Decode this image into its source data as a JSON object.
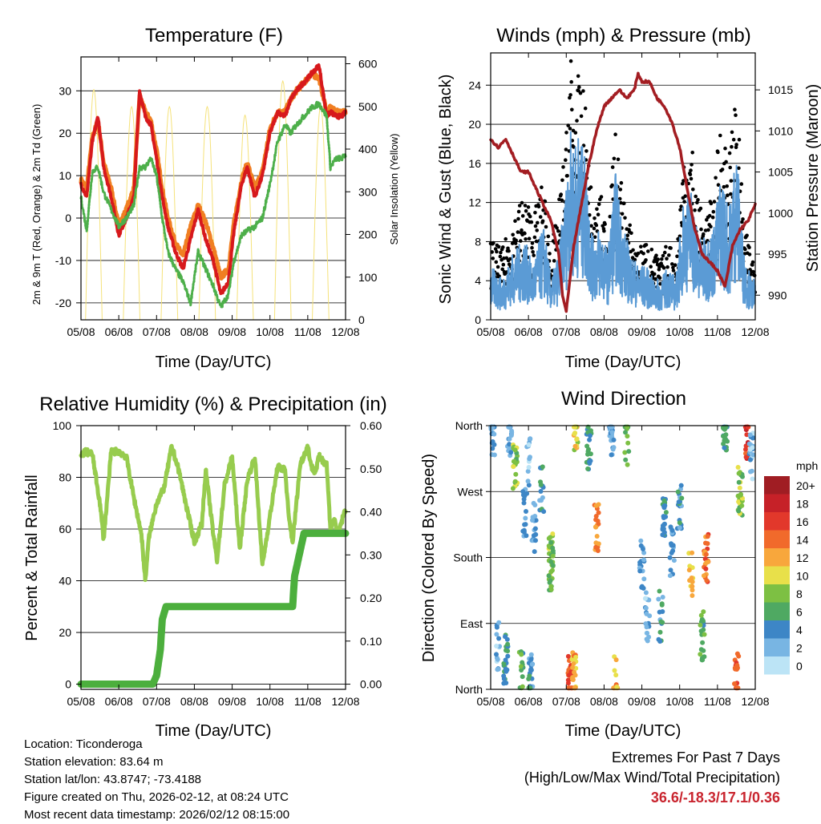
{
  "info": {
    "location": "Location: Ticonderoga",
    "elevation": "Station elevation: 83.64 m",
    "latlon": "Station lat/lon: 43.8747; -73.4188",
    "created": "Figure created on Thu, 2026-02-12, at 08:24 UTC",
    "recent": "Most recent data timestamp: 2026/02/12 08:15:00"
  },
  "extremes": {
    "title": "Extremes For Past 7 Days",
    "subtitle": "(High/Low/Max Wind/Total Precipitation)",
    "values": "36.6/-18.3/17.1/0.36"
  },
  "colors": {
    "temp2m": "#d7191c",
    "temp9m": "#f07f22",
    "dewpoint": "#4daf4a",
    "solar": "#f5e27a",
    "gust": "#000000",
    "wind": "#5b9bd5",
    "pressure": "#a31d22",
    "rh": "#97cc4e",
    "precip": "#4caf3d"
  },
  "chart_data": [
    {
      "id": "temp",
      "type": "line",
      "title": "Temperature (F)",
      "xlabel": "Time (Day/UTC)",
      "ylabel": "2m & 9m T (Red, Orange) & 2m Td (Green)",
      "ylabel_right": "Solar Insolation (Yellow)",
      "xlim": [
        0,
        7
      ],
      "ylim": [
        -24,
        38
      ],
      "ylim_right": [
        0,
        616
      ],
      "x_ticks": [
        "05/08",
        "06/08",
        "07/08",
        "08/08",
        "09/08",
        "10/08",
        "11/08",
        "12/08"
      ],
      "y_ticks": [
        -20,
        -10,
        0,
        10,
        20,
        30
      ],
      "y_ticks_right": [
        0,
        100,
        200,
        300,
        400,
        500,
        600
      ],
      "gridlines": "horizontal",
      "series": [
        {
          "name": "2m T",
          "x": [
            0,
            0.15,
            0.3,
            0.45,
            0.6,
            0.8,
            1,
            1.2,
            1.4,
            1.55,
            1.7,
            1.85,
            2,
            2.15,
            2.3,
            2.5,
            2.7,
            2.9,
            3.1,
            3.3,
            3.5,
            3.7,
            3.9,
            4.05,
            4.25,
            4.4,
            4.6,
            4.8,
            5,
            5.2,
            5.4,
            5.55,
            5.7,
            5.9,
            6.1,
            6.3,
            6.5,
            6.6,
            6.75,
            6.9,
            7
          ],
          "values": [
            8,
            5,
            18,
            24,
            12,
            5,
            -4,
            0,
            5,
            30,
            24,
            22,
            14,
            5,
            -2,
            -8,
            -12,
            -5,
            2,
            -5,
            -10,
            -18,
            -15,
            -3,
            8,
            12,
            5,
            10,
            20,
            25,
            24,
            28,
            30,
            32,
            34,
            36,
            24,
            25,
            24,
            24,
            25
          ]
        },
        {
          "name": "9m T",
          "x": [
            0,
            0.15,
            0.3,
            0.45,
            0.6,
            0.8,
            1,
            1.2,
            1.4,
            1.55,
            1.7,
            1.85,
            2,
            2.15,
            2.3,
            2.5,
            2.7,
            2.9,
            3.1,
            3.3,
            3.5,
            3.7,
            3.9,
            4.05,
            4.25,
            4.4,
            4.6,
            4.8,
            5,
            5.2,
            5.4,
            5.55,
            5.7,
            5.9,
            6.1,
            6.3,
            6.5,
            6.6,
            6.75,
            6.9,
            7
          ],
          "values": [
            9,
            7,
            19,
            23,
            13,
            7,
            -2,
            2,
            7,
            29,
            25,
            23,
            16,
            7,
            0,
            -6,
            -9,
            -2,
            3,
            -1,
            -7,
            -14,
            -12,
            -1,
            9,
            13,
            7,
            11,
            21,
            25,
            25,
            28,
            30,
            32,
            34,
            33,
            25,
            26,
            25,
            25,
            25
          ]
        },
        {
          "name": "2m Td",
          "x": [
            0,
            0.15,
            0.3,
            0.45,
            0.6,
            0.8,
            1,
            1.2,
            1.4,
            1.55,
            1.7,
            1.85,
            2,
            2.15,
            2.3,
            2.5,
            2.7,
            2.9,
            3.1,
            3.3,
            3.5,
            3.7,
            3.9,
            4.05,
            4.25,
            4.4,
            4.6,
            4.8,
            5,
            5.2,
            5.4,
            5.55,
            5.7,
            5.9,
            6.1,
            6.3,
            6.5,
            6.6,
            6.75,
            6.9,
            7
          ],
          "values": [
            5,
            -3,
            11,
            12,
            6,
            2,
            -2,
            0,
            3,
            12,
            12,
            14,
            10,
            0,
            -8,
            -12,
            -15,
            -20,
            -8,
            -12,
            -16,
            -21,
            -18,
            -10,
            -4,
            -3,
            -2,
            0,
            8,
            18,
            22,
            20,
            22,
            24,
            26,
            27,
            24,
            12,
            14,
            14,
            15
          ]
        },
        {
          "name": "Solar Insolation",
          "axis": "right",
          "x": [
            0.15,
            0.35,
            0.55,
            1.15,
            1.35,
            1.55,
            2.15,
            2.35,
            2.55,
            3.15,
            3.35,
            3.55,
            4.15,
            4.35,
            4.55,
            5.15,
            5.35,
            5.55,
            6.15,
            6.35,
            6.55
          ],
          "values": [
            0,
            540,
            0,
            0,
            500,
            0,
            0,
            500,
            0,
            0,
            500,
            0,
            0,
            480,
            0,
            0,
            560,
            0,
            0,
            500,
            0
          ]
        }
      ]
    },
    {
      "id": "winds",
      "type": "scatter",
      "title": "Winds (mph) & Pressure (mb)",
      "xlabel": "Time (Day/UTC)",
      "ylabel": "Sonic Wind & Gust (Blue, Black)",
      "ylabel_right": "Station Pressure (Maroon)",
      "xlim": [
        0,
        7
      ],
      "ylim": [
        0,
        27.3
      ],
      "ylim_right": [
        987,
        1019.5
      ],
      "x_ticks": [
        "05/08",
        "06/08",
        "07/08",
        "08/08",
        "09/08",
        "10/08",
        "11/08",
        "12/08"
      ],
      "y_ticks": [
        0,
        4,
        8,
        12,
        16,
        20,
        24
      ],
      "y_ticks_right": [
        990,
        995,
        1000,
        1005,
        1010,
        1015
      ],
      "gridlines": "horizontal",
      "series": [
        {
          "name": "Gust",
          "x": [
            0,
            0.3,
            0.6,
            0.9,
            1.1,
            1.4,
            1.6,
            1.8,
            2.0,
            2.1,
            2.2,
            2.3,
            2.5,
            2.7,
            2.9,
            3.1,
            3.3,
            3.5,
            3.7,
            3.9,
            4.1,
            4.3,
            4.5,
            4.7,
            4.9,
            5.1,
            5.3,
            5.5,
            5.7,
            5.9,
            6.1,
            6.3,
            6.5,
            6.7,
            6.9
          ],
          "values": [
            7,
            6,
            9,
            11,
            9,
            12,
            6,
            10,
            16,
            25,
            20,
            21,
            19,
            9,
            11,
            8,
            16,
            11,
            8,
            6,
            7,
            6,
            5,
            7,
            5,
            15,
            16,
            10,
            9,
            11,
            18,
            14,
            20,
            8,
            6
          ]
        },
        {
          "name": "Wind",
          "x": [
            0,
            0.3,
            0.6,
            0.9,
            1.1,
            1.4,
            1.6,
            1.8,
            2.0,
            2.1,
            2.2,
            2.3,
            2.5,
            2.7,
            2.9,
            3.1,
            3.3,
            3.5,
            3.7,
            3.9,
            4.1,
            4.3,
            4.5,
            4.7,
            4.9,
            5.1,
            5.3,
            5.5,
            5.7,
            5.9,
            6.1,
            6.3,
            6.5,
            6.7,
            6.9
          ],
          "values": [
            4,
            3,
            5,
            6,
            4,
            7,
            3,
            5,
            10,
            14,
            13,
            14,
            12,
            6,
            7,
            5,
            11,
            7,
            5,
            4,
            4,
            3,
            3,
            4,
            3,
            9,
            10,
            6,
            6,
            7,
            11,
            8,
            13,
            5,
            3
          ]
        },
        {
          "name": "Station Pressure",
          "axis": "right",
          "x": [
            0,
            0.2,
            0.4,
            0.6,
            0.8,
            1.0,
            1.2,
            1.4,
            1.6,
            1.8,
            1.9,
            2.0,
            2.2,
            2.4,
            2.6,
            2.8,
            3.0,
            3.2,
            3.4,
            3.6,
            3.8,
            3.9,
            4.0,
            4.2,
            4.4,
            4.6,
            4.8,
            5.0,
            5.2,
            5.4,
            5.6,
            5.8,
            6.0,
            6.2,
            6.4,
            6.6,
            6.8,
            7
          ],
          "values": [
            1009,
            1008,
            1009,
            1007,
            1005,
            1005,
            1003,
            1001,
            999,
            995,
            990,
            988,
            996,
            1001,
            1006,
            1010,
            1013,
            1014,
            1015,
            1014,
            1015,
            1017,
            1016,
            1016,
            1014,
            1013,
            1011,
            1008,
            1003,
            998,
            995,
            994,
            993,
            991,
            996,
            998,
            999,
            1001
          ]
        }
      ]
    },
    {
      "id": "rh",
      "type": "line",
      "title": "Relative Humidity (%) & Precipitation (in)",
      "xlabel": "Time (Day/UTC)",
      "ylabel": "Percent & Total Rainfall",
      "xlim": [
        0,
        7
      ],
      "ylim": [
        -2,
        100
      ],
      "ylim_right": [
        -0.012,
        0.6
      ],
      "x_ticks": [
        "05/08",
        "06/08",
        "07/08",
        "08/08",
        "09/08",
        "10/08",
        "11/08",
        "12/08"
      ],
      "y_ticks": [
        0,
        20,
        40,
        60,
        80,
        100
      ],
      "y_ticks_right": [
        "0.00",
        "0.10",
        "0.20",
        "0.30",
        "0.40",
        "0.50",
        "0.60"
      ],
      "gridlines": "horizontal",
      "series": [
        {
          "name": "Relative Humidity",
          "x": [
            0,
            0.1,
            0.3,
            0.5,
            0.6,
            0.8,
            1.0,
            1.2,
            1.4,
            1.6,
            1.7,
            1.8,
            2.0,
            2.2,
            2.4,
            2.6,
            2.8,
            3.0,
            3.2,
            3.3,
            3.5,
            3.6,
            3.8,
            4.0,
            4.2,
            4.4,
            4.6,
            4.8,
            5.0,
            5.2,
            5.4,
            5.5,
            5.6,
            5.8,
            6.0,
            6.1,
            6.2,
            6.3,
            6.5,
            6.6,
            6.7,
            6.8,
            7
          ],
          "values": [
            88,
            90,
            89,
            70,
            56,
            90,
            90,
            88,
            72,
            58,
            40,
            57,
            70,
            76,
            92,
            82,
            68,
            55,
            62,
            83,
            58,
            48,
            77,
            88,
            52,
            79,
            88,
            46,
            65,
            84,
            83,
            64,
            55,
            85,
            92,
            84,
            82,
            88,
            85,
            60,
            64,
            58,
            68
          ]
        },
        {
          "name": "Total Precipitation",
          "axis": "right",
          "x": [
            0,
            1.9,
            2.0,
            2.1,
            2.15,
            2.25,
            2.35,
            5.6,
            5.65,
            5.8,
            5.9,
            7
          ],
          "values": [
            0,
            0,
            0.02,
            0.08,
            0.15,
            0.18,
            0.18,
            0.18,
            0.25,
            0.31,
            0.35,
            0.35
          ]
        }
      ]
    },
    {
      "id": "wdir",
      "type": "scatter",
      "title": "Wind Direction",
      "xlabel": "Time (Day/UTC)",
      "ylabel": "Direction (Colored By Speed)",
      "xlim": [
        0,
        7
      ],
      "ylim": [
        0,
        360
      ],
      "x_ticks": [
        "05/08",
        "06/08",
        "07/08",
        "08/08",
        "09/08",
        "10/08",
        "11/08",
        "12/08"
      ],
      "y_ticks": [
        "North",
        "East",
        "South",
        "West",
        "North"
      ],
      "gridlines": "horizontal",
      "colorbar": {
        "title": "mph",
        "labels": [
          "20+",
          "18",
          "16",
          "14",
          "12",
          "10",
          "8",
          "6",
          "4",
          "2",
          "0"
        ],
        "colors": [
          "#a01d23",
          "#c62128",
          "#e2382b",
          "#f16a2b",
          "#f8a73c",
          "#e8e04a",
          "#7dc043",
          "#4fa962",
          "#3d86c6",
          "#78b5e3",
          "#bce4f6"
        ]
      },
      "series": [
        {
          "name": "Direction",
          "x": [
            0.05,
            0.2,
            0.4,
            0.5,
            0.65,
            0.8,
            0.9,
            1.0,
            1.05,
            1.15,
            1.35,
            1.6,
            1.6,
            2.1,
            2.2,
            2.25,
            2.6,
            2.8,
            3.2,
            3.3,
            3.6,
            4.0,
            4.15,
            4.5,
            4.6,
            4.8,
            5.0,
            5.3,
            5.6,
            5.7,
            6.2,
            6.5,
            6.6,
            6.8,
            6.9
          ],
          "directions": [
            355,
            60,
            40,
            350,
            300,
            20,
            240,
            310,
            15,
            220,
            270,
            180,
            170,
            10,
            25,
            360,
            330,
            220,
            355,
            10,
            340,
            170,
            100,
            100,
            240,
            190,
            250,
            155,
            75,
            180,
            360,
            20,
            270,
            350,
            320
          ],
          "speeds": [
            3,
            2,
            5,
            3,
            8,
            6,
            3,
            2,
            4,
            3,
            4,
            9,
            7,
            15,
            12,
            10,
            5,
            13,
            3,
            12,
            7,
            3,
            2,
            4,
            5,
            3,
            4,
            11,
            6,
            14,
            5,
            15,
            8,
            16,
            2
          ]
        }
      ]
    }
  ]
}
